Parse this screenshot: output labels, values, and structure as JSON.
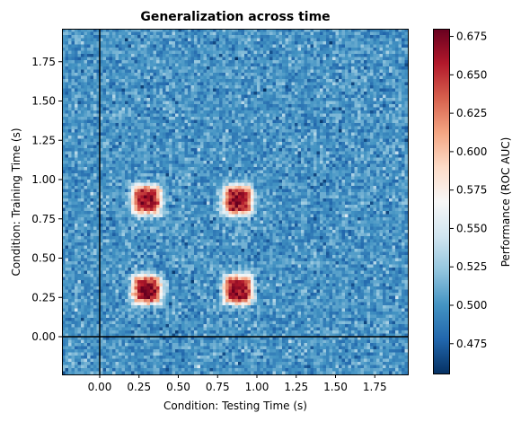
{
  "chart_data": {
    "type": "heatmap",
    "title": "Generalization across time",
    "xlabel": "Condition: Testing Time (s)",
    "ylabel": "Condition: Training Time (s)",
    "colorbar_label": "Performance (ROC AUC)",
    "colormap": "RdBu_r",
    "xlim": [
      -0.24,
      1.96
    ],
    "ylim": [
      -0.24,
      1.96
    ],
    "clim": [
      0.455,
      0.68
    ],
    "xticks": [
      "0.00",
      "0.25",
      "0.50",
      "0.75",
      "1.00",
      "1.25",
      "1.50",
      "1.75"
    ],
    "yticks": [
      "0.00",
      "0.25",
      "0.50",
      "0.75",
      "1.00",
      "1.25",
      "1.50",
      "1.75"
    ],
    "colorbar_ticks": [
      "0.475",
      "0.500",
      "0.525",
      "0.550",
      "0.575",
      "0.600",
      "0.625",
      "0.650",
      "0.675"
    ],
    "background_value": 0.5,
    "noise_sd": 0.012,
    "hotspots": [
      {
        "x": 0.3,
        "y": 0.3,
        "peak": 0.67
      },
      {
        "x": 0.3,
        "y": 0.87,
        "peak": 0.67
      },
      {
        "x": 0.88,
        "y": 0.3,
        "peak": 0.67
      },
      {
        "x": 0.88,
        "y": 0.87,
        "peak": 0.67
      }
    ],
    "reference_lines": {
      "x": 0.0,
      "y": 0.0
    },
    "grid": false
  }
}
